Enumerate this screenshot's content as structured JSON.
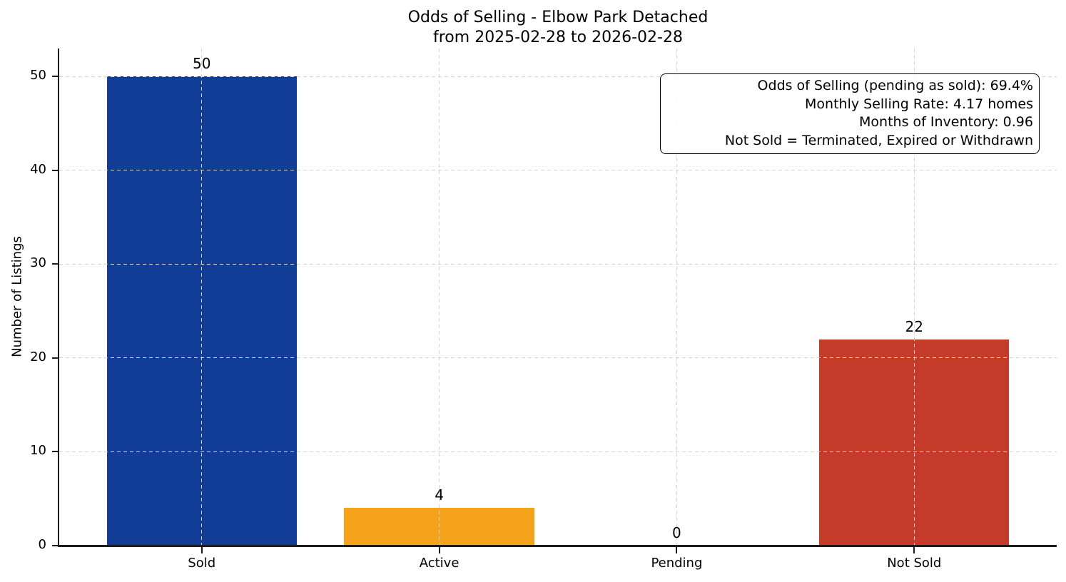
{
  "chart_data": {
    "type": "bar",
    "title": "Odds of Selling - Elbow Park Detached",
    "subtitle": "from 2025-02-28 to 2026-02-28",
    "ylabel": "Number of Listings",
    "xlabel": "",
    "categories": [
      "Sold",
      "Active",
      "Pending",
      "Not Sold"
    ],
    "values": [
      50,
      4,
      0,
      22
    ],
    "bar_value_labels": [
      "50",
      "4",
      "0",
      "22"
    ],
    "bar_colors": [
      "#113d96",
      "#f5a31b",
      "#999999",
      "#c43b29"
    ],
    "yticks": [
      0,
      10,
      20,
      30,
      40,
      50
    ],
    "ylim": [
      0,
      53
    ],
    "grid": "dashed both axes, drawn above bars",
    "legend_position": "none",
    "annotation": {
      "lines": [
        "Odds of Selling (pending as sold): 69.4%",
        "Monthly Selling Rate: 4.17 homes",
        "Months of Inventory: 0.96",
        "Not Sold = Terminated, Expired or Withdrawn"
      ]
    }
  }
}
